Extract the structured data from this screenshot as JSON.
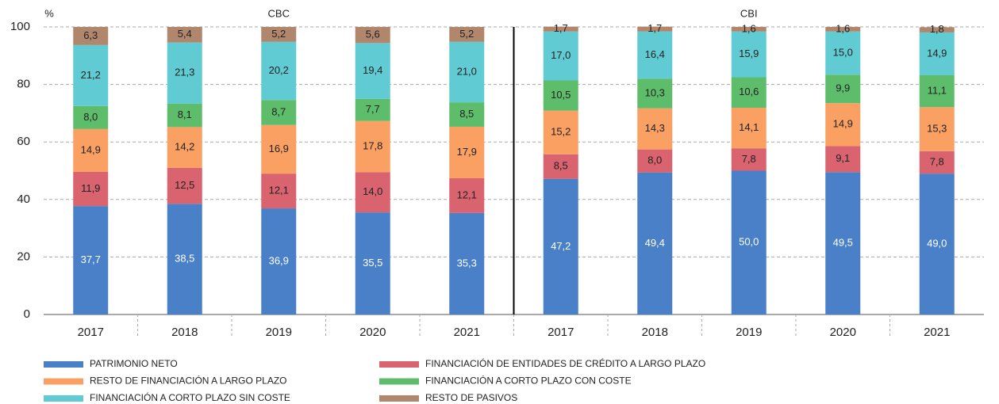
{
  "chart_data": {
    "type": "bar",
    "stacked": true,
    "y_label": "%",
    "groups": [
      {
        "label": "CBC",
        "start": 0,
        "end": 4
      },
      {
        "label": "CBI",
        "start": 5,
        "end": 9
      }
    ],
    "categories": [
      "2017",
      "2018",
      "2019",
      "2020",
      "2021",
      "2017",
      "2018",
      "2019",
      "2020",
      "2021"
    ],
    "ylim": [
      0,
      100
    ],
    "yticks": [
      0,
      20,
      40,
      60,
      80,
      100
    ],
    "grid": true,
    "series": [
      {
        "name": "PATRIMONIO NETO",
        "color": "#4a80c8",
        "values": [
          37.7,
          38.5,
          36.9,
          35.5,
          35.3,
          47.2,
          49.4,
          50.0,
          49.5,
          49.0
        ],
        "value_labels": [
          "37,7",
          "38,5",
          "36,9",
          "35,5",
          "35,3",
          "47,2",
          "49,4",
          "50,0",
          "49,5",
          "49,0"
        ]
      },
      {
        "name": "FINANCIACIÓN DE ENTIDADES DE CRÉDITO A LARGO PLAZO",
        "color": "#d9636f",
        "values": [
          11.9,
          12.5,
          12.1,
          14.0,
          12.1,
          8.5,
          8.0,
          7.8,
          9.1,
          7.8
        ],
        "value_labels": [
          "11,9",
          "12,5",
          "12,1",
          "14,0",
          "12,1",
          "8,5",
          "8,0",
          "7,8",
          "9,1",
          "7,8"
        ]
      },
      {
        "name": "RESTO DE FINANCIACIÓN A LARGO PLAZO",
        "color": "#f9a062",
        "values": [
          14.9,
          14.2,
          16.9,
          17.8,
          17.9,
          15.2,
          14.3,
          14.1,
          14.9,
          15.3
        ],
        "value_labels": [
          "14,9",
          "14,2",
          "16,9",
          "17,8",
          "17,9",
          "15,2",
          "14,3",
          "14,1",
          "14,9",
          "15,3"
        ]
      },
      {
        "name": "FINANCIACIÓN A CORTO PLAZO CON COSTE",
        "color": "#5dbd6b",
        "values": [
          8.0,
          8.1,
          8.7,
          7.7,
          8.5,
          10.5,
          10.3,
          10.6,
          9.9,
          11.1
        ],
        "value_labels": [
          "8,0",
          "8,1",
          "8,7",
          "7,7",
          "8,5",
          "10,5",
          "10,3",
          "10,6",
          "9,9",
          "11,1"
        ]
      },
      {
        "name": "FINANCIACIÓN A CORTO PLAZO SIN COSTE",
        "color": "#61cbd3",
        "values": [
          21.2,
          21.3,
          20.2,
          19.4,
          21.0,
          17.0,
          16.4,
          15.9,
          15.0,
          14.9
        ],
        "value_labels": [
          "21,2",
          "21,3",
          "20,2",
          "19,4",
          "21,0",
          "17,0",
          "16,4",
          "15,9",
          "15,0",
          "14,9"
        ]
      },
      {
        "name": "RESTO DE PASIVOS",
        "color": "#b0876c",
        "values": [
          6.3,
          5.4,
          5.2,
          5.6,
          5.2,
          1.7,
          1.7,
          1.6,
          1.6,
          1.8
        ],
        "value_labels": [
          "6,3",
          "5,4",
          "5,2",
          "5,6",
          "5,2",
          "1,7",
          "1,7",
          "1,6",
          "1,6",
          "1,8"
        ]
      }
    ]
  }
}
